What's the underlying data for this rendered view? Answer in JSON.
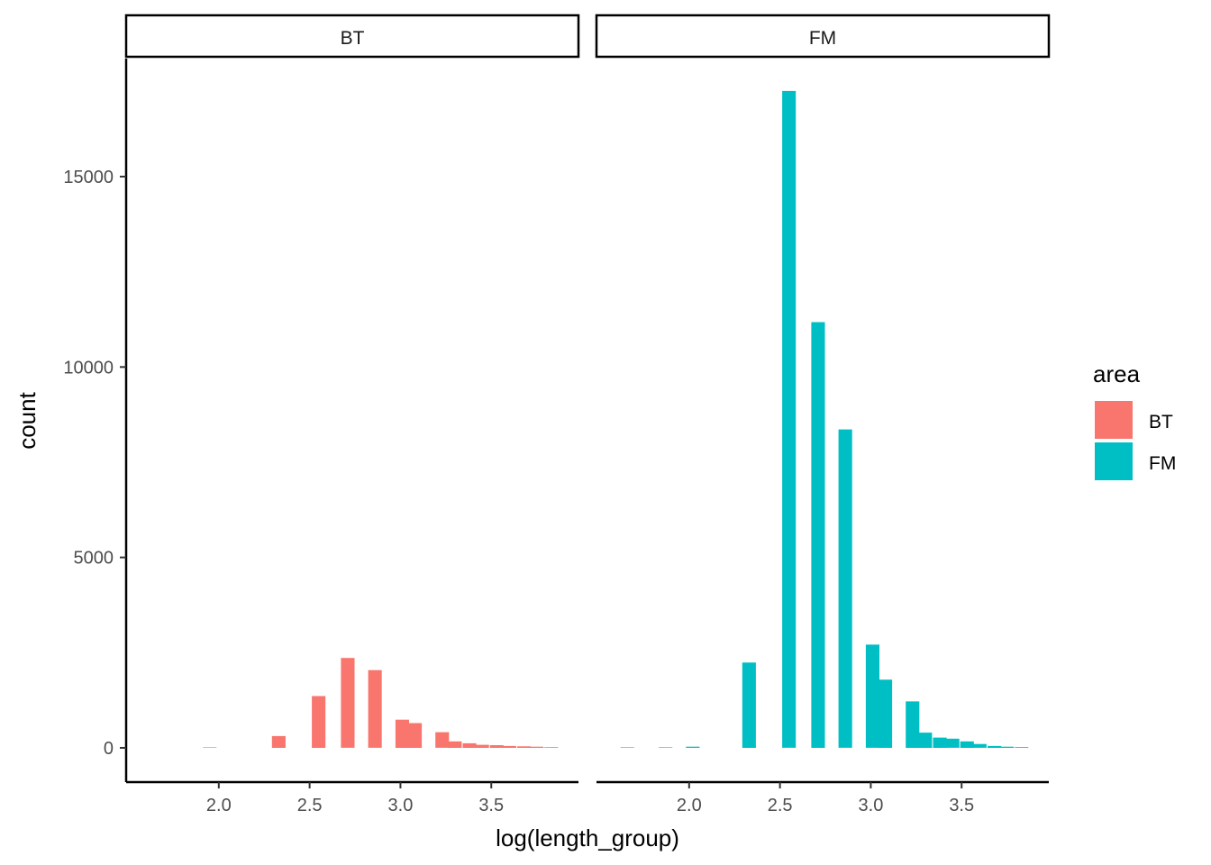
{
  "chart_data": {
    "type": "bar",
    "facets": [
      "BT",
      "FM"
    ],
    "xlabel": "log(length_group)",
    "ylabel": "count",
    "x_ticks": [
      "2.0",
      "2.5",
      "3.0",
      "3.5"
    ],
    "x_tick_values": [
      2.0,
      2.5,
      3.0,
      3.5
    ],
    "y_ticks": [
      "0",
      "5000",
      "10000",
      "15000"
    ],
    "y_tick_values": [
      0,
      5000,
      10000,
      15000
    ],
    "xlim": [
      1.49,
      3.98
    ],
    "ylim": [
      -900,
      18100
    ],
    "bar_width": 0.075,
    "grid": false,
    "legend": {
      "title": "area",
      "position": "right",
      "items": [
        {
          "label": "BT",
          "color": "#F8766D"
        },
        {
          "label": "FM",
          "color": "#00BFC4"
        }
      ]
    },
    "series": [
      {
        "name": "BT",
        "color": "#F8766D",
        "x": [
          1.95,
          2.33,
          2.55,
          2.71,
          2.86,
          3.01,
          3.08,
          3.23,
          3.3,
          3.38,
          3.45,
          3.53,
          3.6,
          3.68,
          3.75,
          3.83
        ],
        "values": [
          10,
          310,
          1360,
          2360,
          2040,
          740,
          650,
          410,
          170,
          120,
          80,
          70,
          50,
          40,
          30,
          20
        ]
      },
      {
        "name": "FM",
        "color": "#00BFC4",
        "x": [
          1.66,
          1.87,
          2.02,
          2.33,
          2.55,
          2.71,
          2.86,
          3.01,
          3.08,
          3.23,
          3.3,
          3.38,
          3.45,
          3.53,
          3.6,
          3.68,
          3.75,
          3.83
        ],
        "values": [
          5,
          5,
          30,
          2240,
          17250,
          11180,
          8360,
          2710,
          1790,
          1220,
          400,
          270,
          240,
          170,
          100,
          50,
          30,
          20
        ]
      }
    ]
  }
}
